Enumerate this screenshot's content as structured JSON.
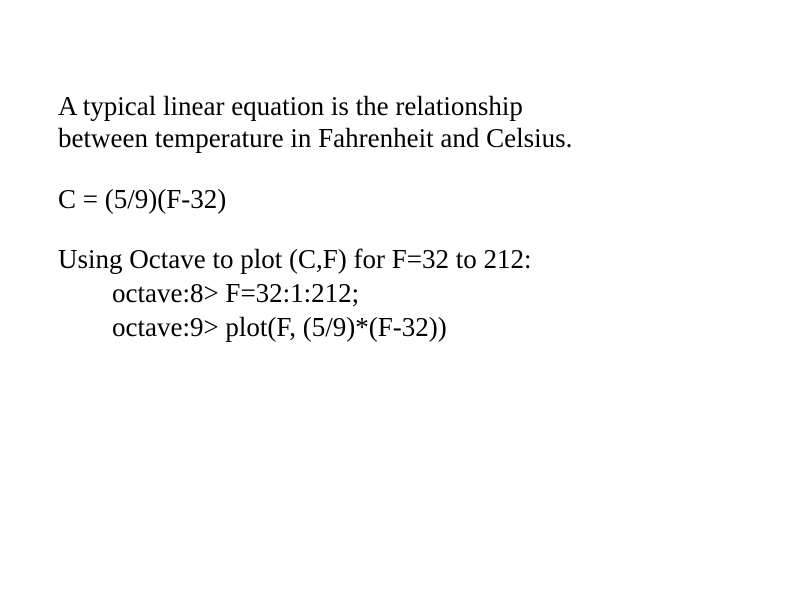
{
  "paragraph": {
    "line1": "A typical linear equation is the relationship",
    "line2": "between temperature in Fahrenheit and Celsius."
  },
  "equation": "C = (5/9)(F-32)",
  "usage": {
    "intro": "Using Octave to plot (C,F) for F=32 to 212:",
    "line1": "octave:8> F=32:1:212;",
    "line2": "octave:9> plot(F, (5/9)*(F-32))"
  },
  "colors": {
    "text": "#000000",
    "background": "#ffffff"
  },
  "typography": {
    "font_family": "Times New Roman",
    "body_fontsize_pt": 20
  }
}
